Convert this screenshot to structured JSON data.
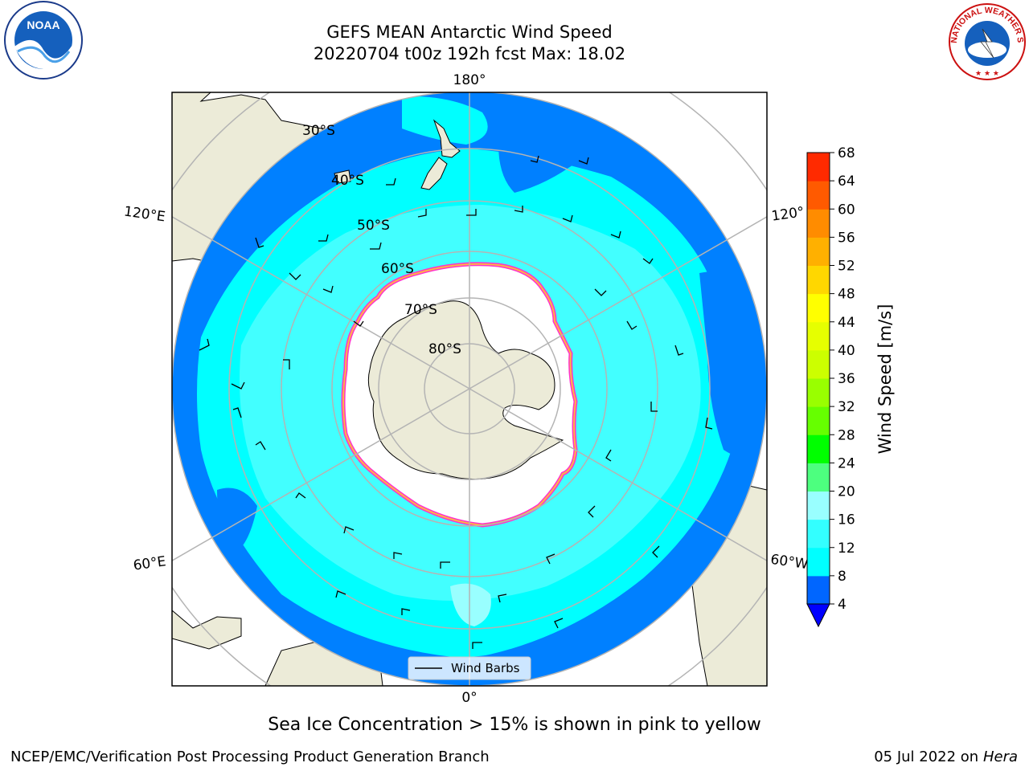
{
  "header": {
    "title_line1": "GEFS MEAN Antarctic Wind Speed",
    "title_line2": "20220704 t00z 192h fcst   Max: 18.02"
  },
  "map": {
    "projection": "south-polar-stereographic",
    "lon_labels": {
      "top": "180°",
      "left_upper": "120°E",
      "right_upper": "120°",
      "left_lower": "60°E",
      "right_lower": "60°W",
      "bottom": "0°"
    },
    "lat_labels": [
      "30°S",
      "40°S",
      "50°S",
      "60°S",
      "70°S",
      "80°S"
    ],
    "legend": {
      "barb_label": "Wind Barbs"
    },
    "colors": {
      "land": "#ecebd8",
      "ocean_low": "#0080ff",
      "ocean_mid": "#00ffff",
      "ocean_high": "#4dffff",
      "ice": "#ffffff",
      "grid": "#b4b4b4"
    }
  },
  "colorbar": {
    "label": "Wind Speed [m/s]",
    "ticks": [
      "4",
      "8",
      "12",
      "16",
      "20",
      "24",
      "28",
      "32",
      "36",
      "40",
      "44",
      "48",
      "52",
      "56",
      "60",
      "64",
      "68"
    ],
    "colors": [
      "#0066ff",
      "#00ffff",
      "#33ffff",
      "#99ffff",
      "#4dff7f",
      "#00ff00",
      "#66ff00",
      "#99ff00",
      "#ccff00",
      "#e6ff00",
      "#ffff00",
      "#ffd700",
      "#ffb000",
      "#ff8c00",
      "#ff5a00",
      "#ff2a00",
      "#ff0000"
    ],
    "under_color": "#0000ff"
  },
  "footer": {
    "note": "Sea Ice Concentration > 15% is shown in pink to yellow",
    "left": "NCEP/EMC/Verification Post Processing Product Generation Branch",
    "right_date": "05 Jul 2022 on",
    "right_machine": "Hera"
  },
  "logos": {
    "noaa": "NOAA",
    "nws_text": "NATIONAL WEATHER SERVICE"
  }
}
